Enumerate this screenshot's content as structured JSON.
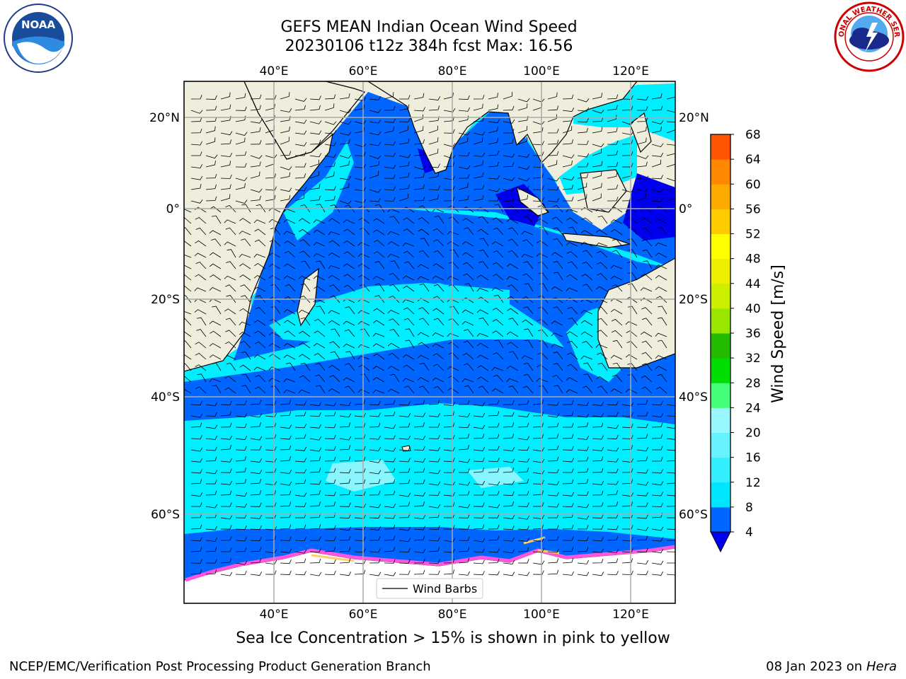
{
  "header": {
    "title_line1": "GEFS MEAN Indian Ocean Wind Speed",
    "title_line2": "20230106 t12z 384h fcst   Max: 16.56"
  },
  "logos": {
    "left": "noaa-logo",
    "left_text": "NOAA",
    "right": "national-weather-service-logo",
    "right_text": "NATIONAL WEATHER SERVICE"
  },
  "map": {
    "lon_ticks_top": [
      "40°E",
      "60°E",
      "80°E",
      "100°E",
      "120°E"
    ],
    "lon_ticks_bottom": [
      "40°E",
      "60°E",
      "80°E",
      "100°E",
      "120°E"
    ],
    "lat_ticks_left": [
      "20°N",
      "0°",
      "20°S",
      "40°S",
      "60°S"
    ],
    "lat_ticks_right": [
      "20°N",
      "0°",
      "20°S",
      "40°S",
      "60°S"
    ],
    "legend_label": "Wind Barbs"
  },
  "colorbar": {
    "label": "Wind Speed [m/s]",
    "ticks": [
      "4",
      "8",
      "12",
      "16",
      "20",
      "24",
      "28",
      "32",
      "36",
      "40",
      "44",
      "48",
      "52",
      "56",
      "60",
      "64",
      "68"
    ],
    "colors": [
      "#0066ff",
      "#00e5ff",
      "#33eeff",
      "#66f2ff",
      "#99f8ff",
      "#44ff77",
      "#00dd00",
      "#22bb00",
      "#99e600",
      "#ccee00",
      "#eeee00",
      "#ffff00",
      "#ffcc00",
      "#ffaa00",
      "#ff8800",
      "#ff5500",
      "#ff2200",
      "#ff0000"
    ],
    "extend_color": "#0000ee"
  },
  "colors": {
    "land": "#efeedd",
    "ocean_low": "#0066ff",
    "ocean_mid": "#00eeff",
    "ocean_calm": "#0000ee",
    "ice_edge": "#ff55dd"
  },
  "caption": "Sea Ice Concentration > 15% is shown in pink to yellow",
  "footer": {
    "left": "NCEP/EMC/Verification Post Processing Product Generation Branch",
    "right_date": "08 Jan 2023 on ",
    "right_host": "Hera"
  }
}
